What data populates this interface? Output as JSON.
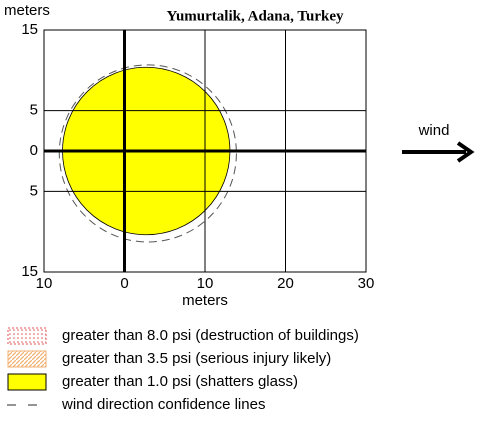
{
  "chart_data": {
    "type": "threat-zone",
    "title": "Yumurtalik, Adana, Turkey",
    "x_label": "meters",
    "y_label": "meters",
    "wind_label": "wind",
    "xlim": [
      -10,
      30
    ],
    "ylim": [
      -15,
      15
    ],
    "xticks": [
      {
        "value": -10,
        "label": "10"
      },
      0,
      10,
      20,
      30
    ],
    "yticks": [
      15,
      5,
      0,
      {
        "value": -5,
        "label": "5"
      },
      {
        "value": -15,
        "label": "15"
      }
    ],
    "grid": true,
    "zones": [
      {
        "name": "greater than 1.0 psi (shatters glass)",
        "color": "#ffff00",
        "center": [
          2.7,
          0
        ],
        "radius": 10.4
      }
    ],
    "confidence": {
      "center": [
        2.9,
        -0.3
      ],
      "radius": 11.0
    },
    "legend": [
      {
        "label": "greater than 8.0 psi (destruction of buildings)",
        "color": "#e05050",
        "style": "dotted"
      },
      {
        "label": "greater than 3.5 psi (serious injury likely)",
        "color": "#f0b070",
        "style": "hatched"
      },
      {
        "label": "greater than 1.0 psi (shatters glass)",
        "color": "#ffff00",
        "style": "solid"
      },
      {
        "label": "wind direction confidence lines",
        "color": "#555555",
        "style": "dashed"
      }
    ]
  }
}
